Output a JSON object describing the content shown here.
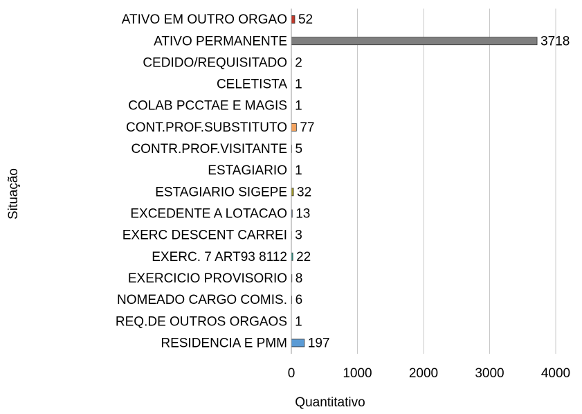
{
  "chart_data": {
    "type": "bar",
    "orientation": "horizontal",
    "xlabel": "Quantitativo",
    "ylabel": "Situação",
    "categories": [
      "ATIVO EM OUTRO ORGAO",
      "ATIVO PERMANENTE",
      "CEDIDO/REQUISITADO",
      "CELETISTA",
      "COLAB PCCTAE E MAGIS",
      "CONT.PROF.SUBSTITUTO",
      "CONTR.PROF.VISITANTE",
      "ESTAGIARIO",
      "ESTAGIARIO SIGEPE",
      "EXCEDENTE A LOTACAO",
      "EXERC DESCENT CARREI",
      "EXERC. 7 ART93 8112",
      "EXERCICIO PROVISORIO",
      "NOMEADO CARGO COMIS.",
      "REQ.DE OUTROS ORGAOS",
      "RESIDENCIA E PMM"
    ],
    "values": [
      52,
      3718,
      2,
      1,
      1,
      77,
      5,
      1,
      32,
      13,
      3,
      22,
      8,
      6,
      1,
      197
    ],
    "colors": [
      "#c0392b",
      "#7f7f7f",
      "#8e6bb0",
      "#4a7ebb",
      "#9bbb59",
      "#f4a460",
      "#7f9fc4",
      "#c0504d",
      "#a39b2a",
      "#3d5a8a",
      "#6aa84f",
      "#2e9e8f",
      "#4f81bd",
      "#8064a2",
      "#4bacc6",
      "#5b9bd5"
    ],
    "xlim": [
      0,
      4000
    ],
    "xticks": [
      0,
      1000,
      2000,
      3000,
      4000
    ],
    "grid": true
  }
}
